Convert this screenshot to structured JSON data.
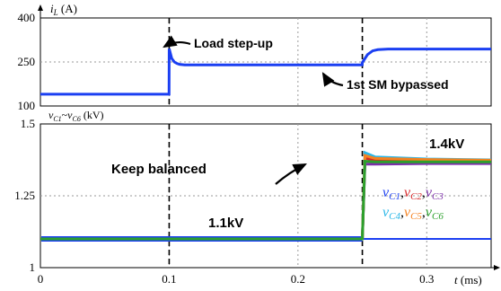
{
  "chart_data": [
    {
      "type": "line",
      "panel": "top",
      "ylabel": "i_L (A)",
      "y_ticks": [
        "400",
        "250",
        "100"
      ],
      "ylim": [
        100,
        400
      ],
      "xlim": [
        0,
        0.35
      ],
      "grid": true,
      "series": [
        {
          "color": "#1b3ff2",
          "x": [
            0,
            0.0999,
            0.1,
            0.102,
            0.104,
            0.106,
            0.108,
            0.112,
            0.12,
            0.2499,
            0.25,
            0.254,
            0.258,
            0.262,
            0.27,
            0.35
          ],
          "y": [
            140,
            140,
            295,
            262,
            250,
            245,
            242,
            240,
            240,
            240,
            248,
            275,
            288,
            292,
            294,
            294
          ]
        }
      ],
      "annotations": [
        {
          "text": "Load step-up",
          "x": 0.1,
          "y": 300
        },
        {
          "text": "1st SM bypassed",
          "x": 0.25,
          "y": 240
        }
      ]
    },
    {
      "type": "line",
      "panel": "bottom",
      "ylabel": "v_C1~v_C6 (kV)",
      "xlabel": "t (ms)",
      "y_ticks": [
        "1.5",
        "1.25",
        "1"
      ],
      "ylim": [
        1,
        1.5
      ],
      "xlim": [
        0,
        0.35
      ],
      "x_ticks": [
        "0",
        "0.1",
        "0.2",
        "0.3"
      ],
      "x_tick_values": [
        0,
        0.1,
        0.2,
        0.3
      ],
      "grid": true,
      "legend": {
        "placement": "right",
        "row1": [
          "v_C1",
          "v_C2",
          "v_C3"
        ],
        "row2": [
          "v_C4",
          "v_C5",
          "v_C6"
        ]
      },
      "series": [
        {
          "name": "vC1",
          "color": "#1b3ff2",
          "x": [
            0,
            0.25,
            0.251,
            0.35
          ],
          "y": [
            1.1,
            1.1,
            1.1,
            1.1
          ]
        },
        {
          "name": "vC2",
          "color": "#d62728",
          "x": [
            0,
            0.25,
            0.252,
            0.26,
            0.3,
            0.35
          ],
          "y": [
            1.1,
            1.1,
            1.38,
            1.375,
            1.37,
            1.37
          ]
        },
        {
          "name": "vC3",
          "color": "#7b2fa8",
          "x": [
            0,
            0.25,
            0.252,
            0.26,
            0.3,
            0.35
          ],
          "y": [
            1.1,
            1.1,
            1.36,
            1.36,
            1.362,
            1.362
          ]
        },
        {
          "name": "vC4",
          "color": "#2ab7e8",
          "x": [
            0,
            0.25,
            0.252,
            0.26,
            0.3,
            0.35
          ],
          "y": [
            1.1,
            1.1,
            1.4,
            1.385,
            1.378,
            1.375
          ]
        },
        {
          "name": "vC5",
          "color": "#f58220",
          "x": [
            0,
            0.25,
            0.252,
            0.26,
            0.3,
            0.35
          ],
          "y": [
            1.1,
            1.1,
            1.39,
            1.38,
            1.376,
            1.374
          ]
        },
        {
          "name": "vC6",
          "color": "#2ca02c",
          "x": [
            0,
            0.25,
            0.252,
            0.26,
            0.3,
            0.35
          ],
          "y": [
            1.1,
            1.1,
            1.37,
            1.368,
            1.368,
            1.368
          ]
        }
      ],
      "annotations": [
        {
          "text": "Keep balanced",
          "x": 0.14,
          "y": 1.39
        },
        {
          "text": "1.1kV",
          "x": 0.18,
          "y": 1.13
        },
        {
          "text": "1.4kV",
          "x": 0.32,
          "y": 1.41
        }
      ]
    }
  ],
  "labels": {
    "top_ylabel_sym": "i",
    "top_ylabel_sub": "L",
    "top_ylabel_unit": " (A)",
    "bot_ylabel_v1": "v",
    "bot_ylabel_s1": "C1",
    "bot_ylabel_tilde": "~",
    "bot_ylabel_v2": "v",
    "bot_ylabel_s2": "C6",
    "bot_ylabel_unit": " (kV)",
    "xlabel_sym": "t",
    "xlabel_unit": " (ms)",
    "ann_load": "Load step-up",
    "ann_bypass": "1st SM bypassed",
    "ann_keep": "Keep balanced",
    "ann_11": "1.1kV",
    "ann_14": "1.4kV",
    "legend_v": "v",
    "legend_sep": ",",
    "legend_subs_row1": [
      "C1",
      "C2",
      "C3"
    ],
    "legend_subs_row2": [
      "C4",
      "C5",
      "C6"
    ]
  }
}
